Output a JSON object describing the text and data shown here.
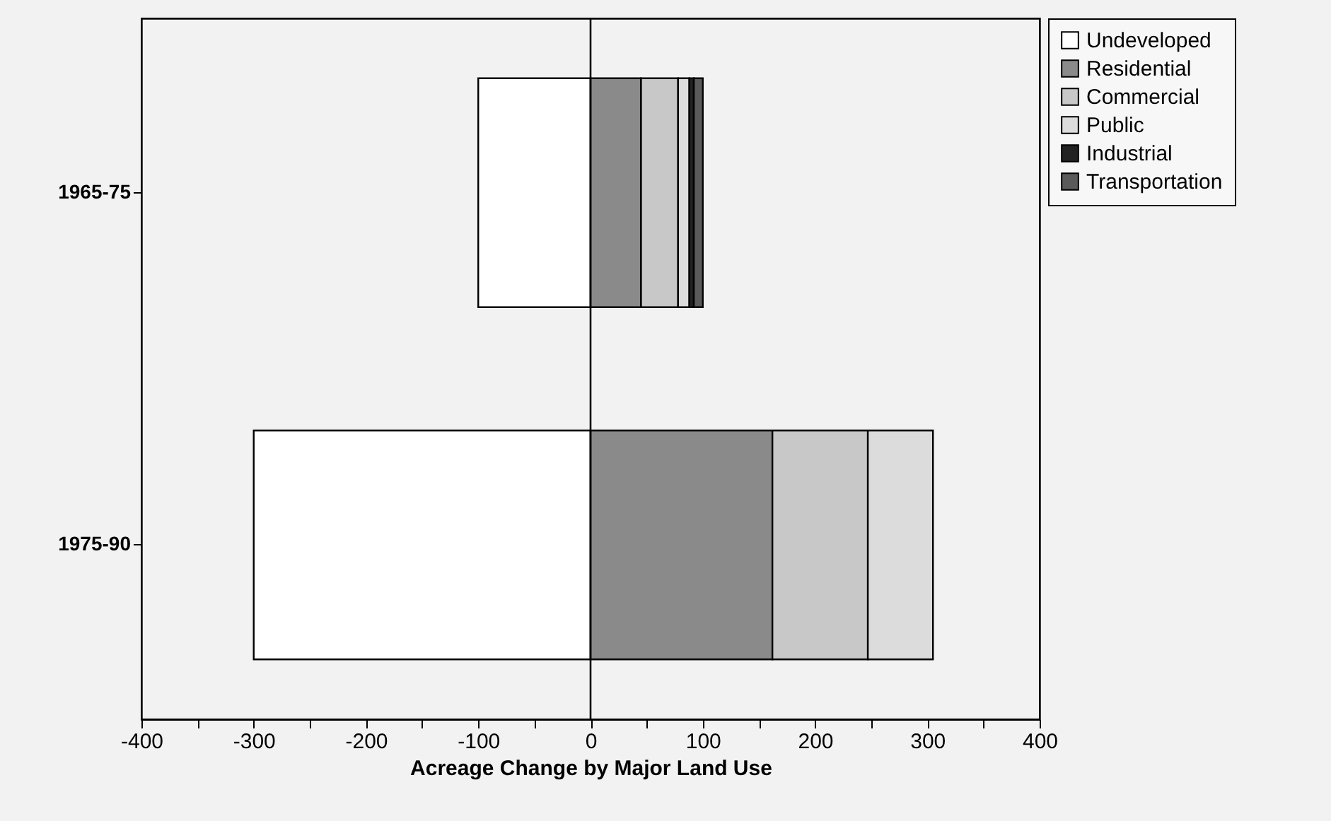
{
  "chart_data": {
    "type": "bar",
    "orientation": "horizontal",
    "stacked": true,
    "xlabel": "Acreage Change by Major Land Use",
    "categories": [
      "1965-75",
      "1975-90"
    ],
    "series": [
      {
        "name": "Undeveloped",
        "color": "#ffffff",
        "values": [
          -100,
          -300
        ]
      },
      {
        "name": "Residential",
        "color": "#8a8a8a",
        "values": [
          45,
          162
        ]
      },
      {
        "name": "Commercial",
        "color": "#c8c8c8",
        "values": [
          33,
          85
        ]
      },
      {
        "name": "Public",
        "color": "#dcdcdc",
        "values": [
          10,
          58
        ]
      },
      {
        "name": "Industrial",
        "color": "#222222",
        "values": [
          4,
          null
        ]
      },
      {
        "name": "Transportation",
        "color": "#5a5a5a",
        "values": [
          8,
          null
        ]
      }
    ],
    "xlim": [
      -400,
      400
    ],
    "xticks": [
      -400,
      {
        "value": -350,
        "label": null
      },
      -300,
      {
        "value": -250,
        "label": null
      },
      -200,
      {
        "value": -150,
        "label": null
      },
      -100,
      {
        "value": -50,
        "label": null
      },
      0,
      {
        "value": 50,
        "label": null
      },
      100,
      {
        "value": 150,
        "label": null
      },
      200,
      {
        "value": 250,
        "label": null
      },
      300,
      {
        "value": 350,
        "label": null
      },
      400
    ],
    "ref_lines": [
      {
        "axis": "x",
        "value": 0,
        "color": "#000000"
      }
    ],
    "grid": false,
    "legend": "top right"
  }
}
